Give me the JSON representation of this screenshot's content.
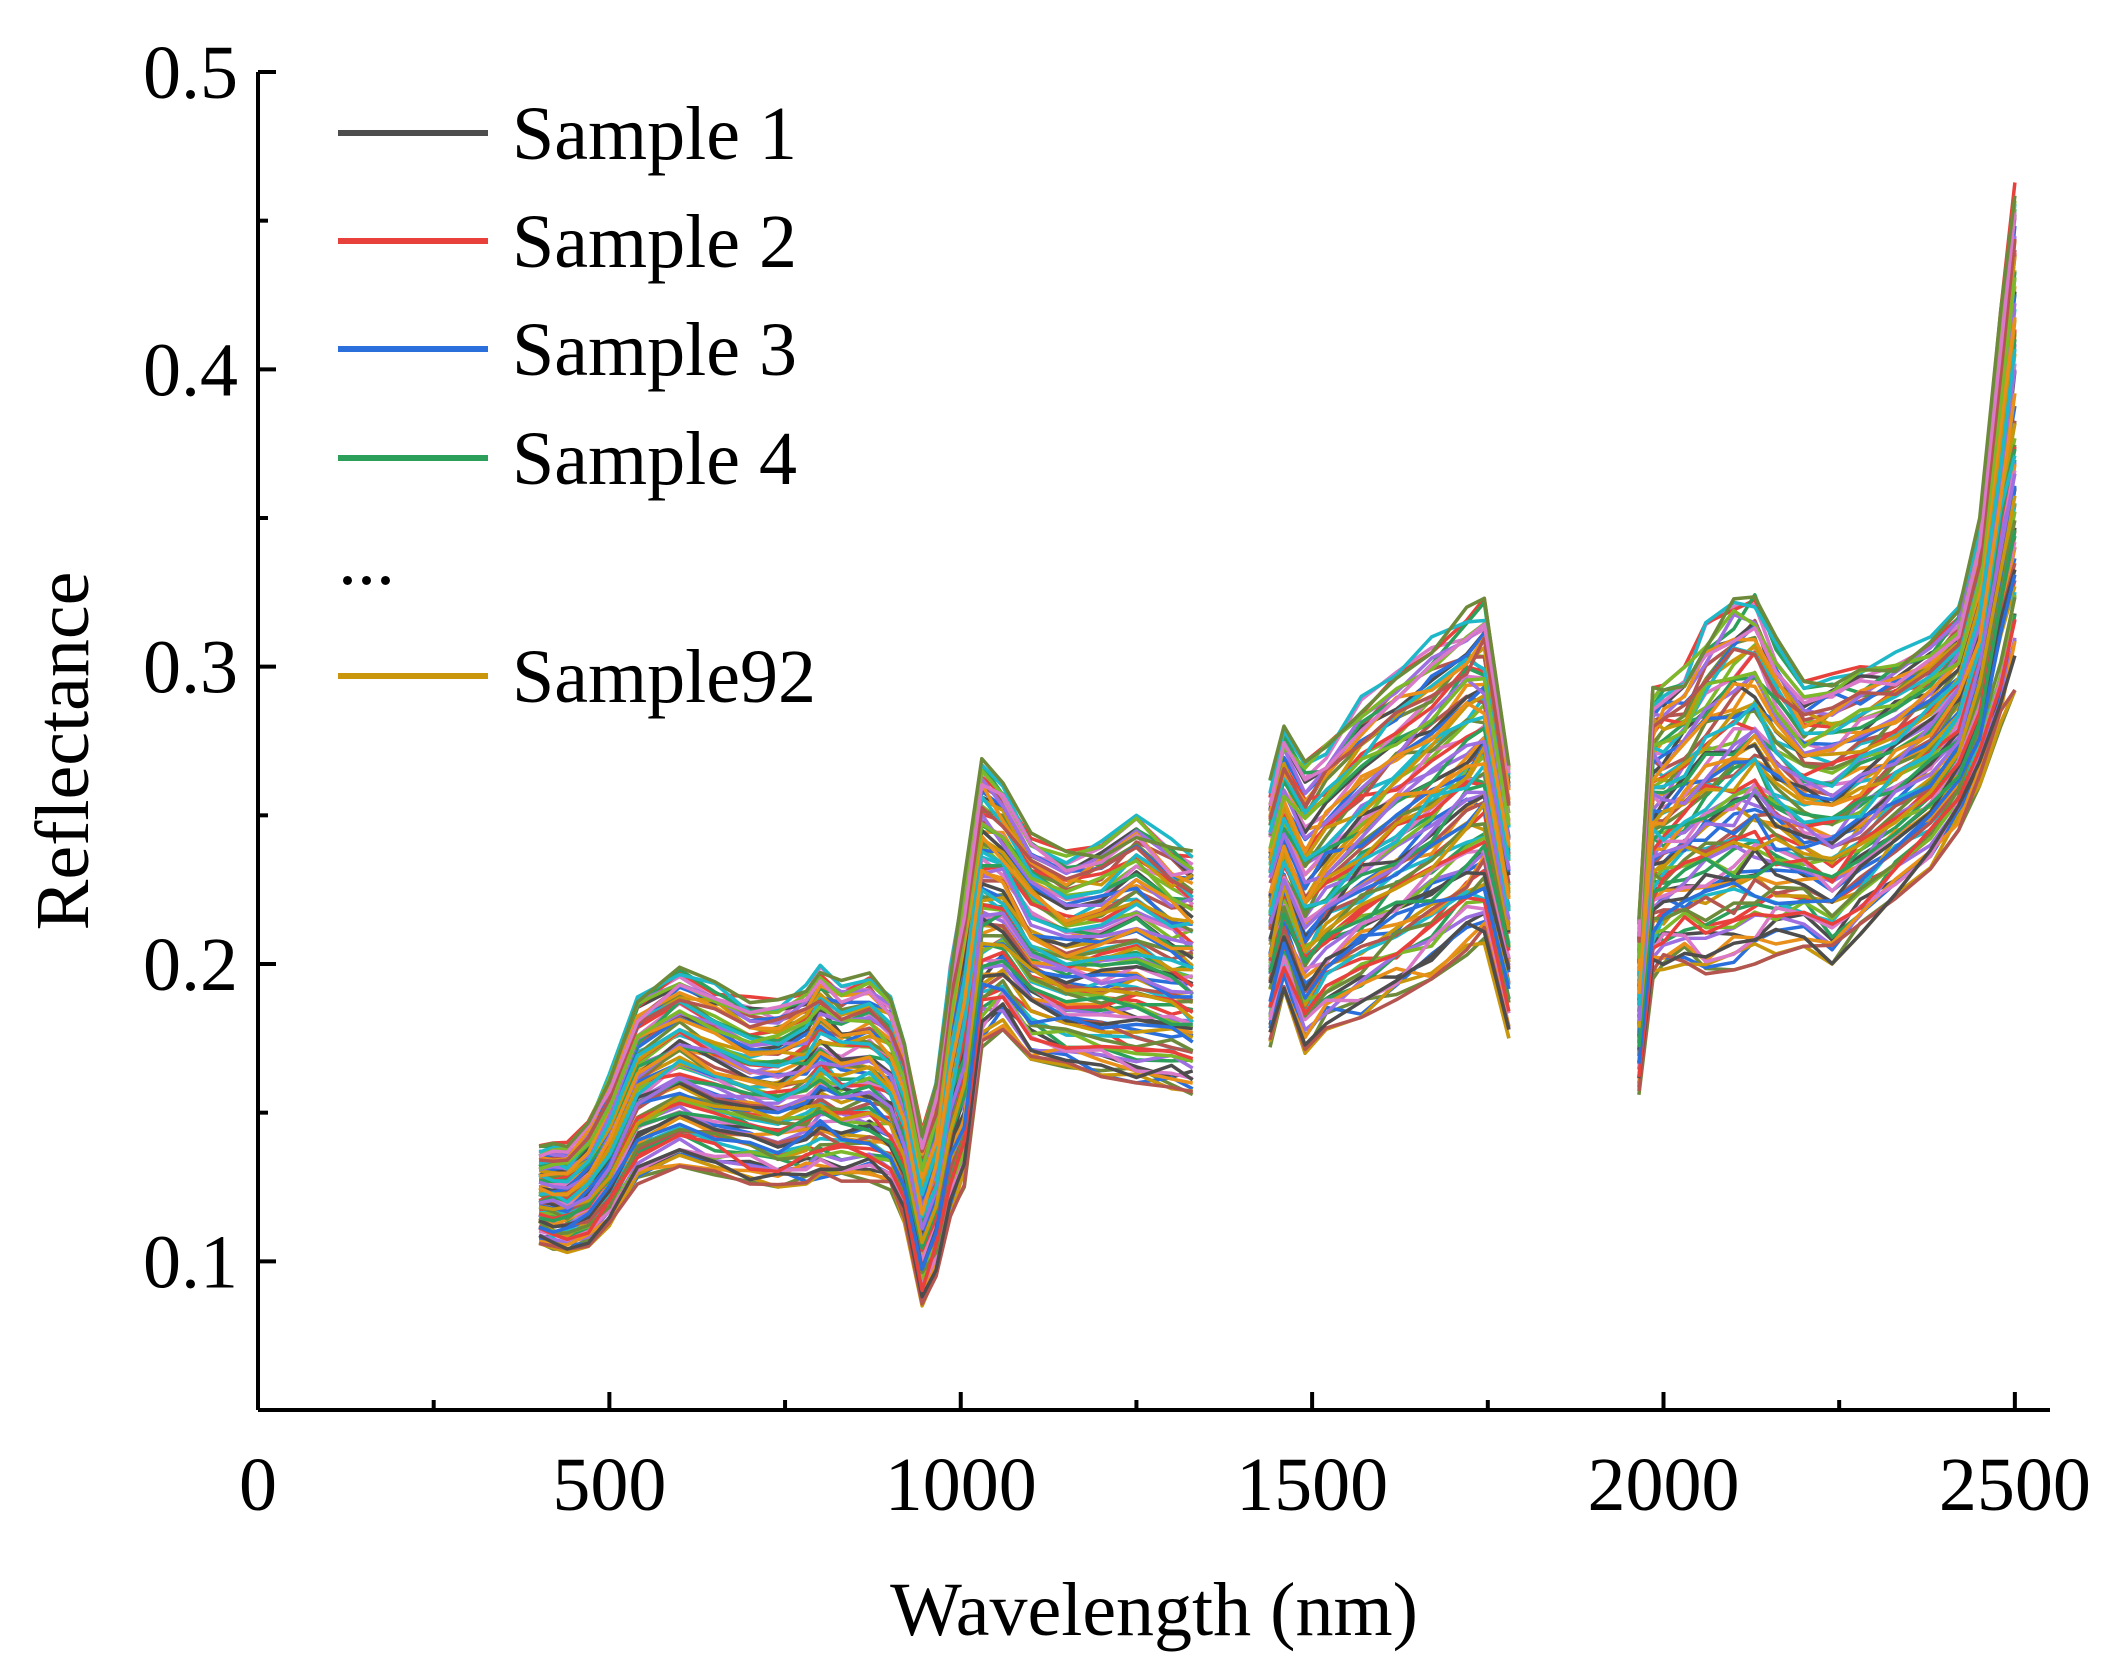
{
  "chart_data": {
    "type": "line",
    "xlabel": "Wavelength (nm)",
    "ylabel": "Reflectance",
    "xlim": [
      0,
      2550
    ],
    "ylim": [
      0.05,
      0.5
    ],
    "x_ticks": [
      0,
      500,
      1000,
      1500,
      2000,
      2500
    ],
    "x_tick_labels": [
      "0",
      "500",
      "1000",
      "1500",
      "2000",
      "2500"
    ],
    "x_minor_ticks": [
      250,
      750,
      1250,
      1750,
      2250
    ],
    "y_ticks": [
      0.1,
      0.2,
      0.3,
      0.4,
      0.5
    ],
    "y_tick_labels": [
      "0.1",
      "0.2",
      "0.3",
      "0.4",
      "0.5"
    ],
    "y_minor_ticks": [
      0.05,
      0.15,
      0.25,
      0.35,
      0.45
    ],
    "grid": false,
    "legend_position": "top-left",
    "legend_entries": [
      {
        "label": "Sample 1",
        "color": "#4d4d4d"
      },
      {
        "label": "Sample 2",
        "color": "#e8413c"
      },
      {
        "label": "Sample 3",
        "color": "#2a6fdb"
      },
      {
        "label": "Sample 4",
        "color": "#2ca05a"
      },
      {
        "label": "...",
        "color": null
      },
      {
        "label": "Sample92",
        "color": "#c9960c"
      }
    ],
    "sample_count": 92,
    "palette": [
      "#4d4d4d",
      "#e8413c",
      "#2a6fdb",
      "#2ca05a",
      "#c9960c",
      "#9e6fe0",
      "#1fb8c8",
      "#e8901a",
      "#7cb82a",
      "#b5554f",
      "#d979c8",
      "#6d8a3a"
    ],
    "segments": [
      {
        "x": [
          400,
          420,
          440,
          470,
          500,
          540,
          600,
          650,
          700,
          740,
          780,
          800,
          830,
          870,
          900,
          920,
          945,
          965,
          985,
          1005,
          1030,
          1060,
          1100,
          1150,
          1200,
          1250,
          1300,
          1330
        ],
        "low": [
          0.106,
          0.104,
          0.103,
          0.105,
          0.112,
          0.126,
          0.132,
          0.129,
          0.126,
          0.125,
          0.126,
          0.128,
          0.127,
          0.127,
          0.124,
          0.113,
          0.085,
          0.095,
          0.115,
          0.125,
          0.172,
          0.178,
          0.168,
          0.165,
          0.162,
          0.16,
          0.157,
          0.156
        ],
        "high": [
          0.139,
          0.14,
          0.14,
          0.148,
          0.163,
          0.19,
          0.2,
          0.194,
          0.189,
          0.188,
          0.193,
          0.2,
          0.195,
          0.197,
          0.19,
          0.175,
          0.144,
          0.16,
          0.2,
          0.23,
          0.27,
          0.262,
          0.245,
          0.238,
          0.242,
          0.25,
          0.242,
          0.238
        ]
      },
      {
        "x": [
          1440,
          1460,
          1490,
          1520,
          1570,
          1620,
          1670,
          1720,
          1745,
          1780
        ],
        "low": [
          0.172,
          0.19,
          0.17,
          0.178,
          0.182,
          0.188,
          0.195,
          0.203,
          0.207,
          0.175
        ],
        "high": [
          0.262,
          0.28,
          0.268,
          0.275,
          0.29,
          0.3,
          0.31,
          0.32,
          0.323,
          0.268
        ]
      },
      {
        "x": [
          1965,
          1985,
          2000,
          2030,
          2060,
          2100,
          2130,
          2160,
          2200,
          2240,
          2280,
          2330,
          2380,
          2420,
          2450,
          2480,
          2500
        ],
        "low": [
          0.156,
          0.195,
          0.197,
          0.2,
          0.196,
          0.198,
          0.2,
          0.203,
          0.206,
          0.2,
          0.21,
          0.222,
          0.232,
          0.245,
          0.26,
          0.28,
          0.292
        ],
        "high": [
          0.215,
          0.293,
          0.295,
          0.3,
          0.315,
          0.323,
          0.327,
          0.31,
          0.295,
          0.298,
          0.3,
          0.305,
          0.31,
          0.32,
          0.35,
          0.42,
          0.468
        ]
      }
    ]
  }
}
